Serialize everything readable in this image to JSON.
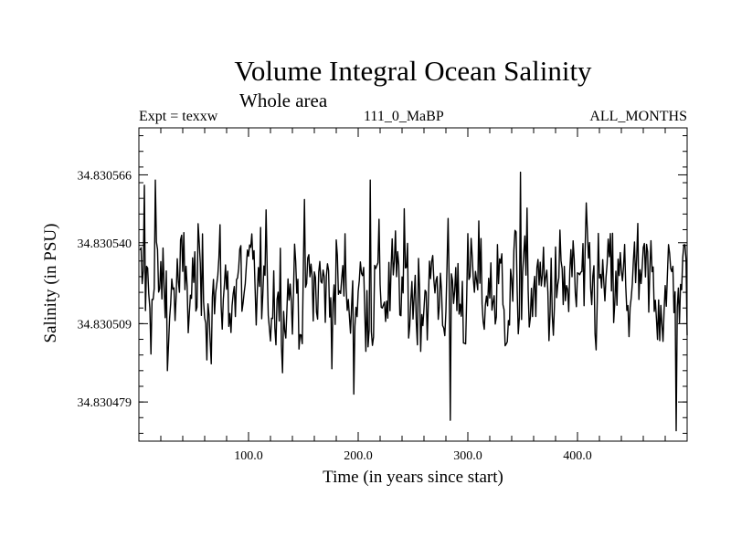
{
  "chart_data": {
    "type": "line",
    "title": "Volume Integral Ocean Salinity",
    "subtitle": "Whole area",
    "expt_label": "Expt = texxw",
    "run_label": "111_0_MaBP",
    "months_label": "ALL_MONTHS",
    "xlabel": "Time (in years since start)",
    "ylabel": "Salinity (in PSU)",
    "xlim": [
      0,
      500
    ],
    "ylim": [
      34.830464,
      34.830584
    ],
    "x_ticks": [
      {
        "value": 100,
        "label": "100.0"
      },
      {
        "value": 200,
        "label": "200.0"
      },
      {
        "value": 300,
        "label": "300.0"
      },
      {
        "value": 400,
        "label": "400.0"
      }
    ],
    "y_ticks": [
      {
        "value": 34.830479,
        "label": "34.830479"
      },
      {
        "value": 34.830509,
        "label": "34.830509"
      },
      {
        "value": 34.83054,
        "label": "34.830540"
      },
      {
        "value": 34.830566,
        "label": "34.830566"
      }
    ],
    "series": [
      {
        "name": "salinity",
        "start_year": 1,
        "step_years": 1,
        "count": 500,
        "mean": 34.830522,
        "std": 1.2e-05,
        "min": 34.830468,
        "max": 34.830567,
        "notable_points": [
          {
            "x": 5,
            "y": 34.830562
          },
          {
            "x": 15,
            "y": 34.830564
          },
          {
            "x": 26,
            "y": 34.830491
          },
          {
            "x": 211,
            "y": 34.830564
          },
          {
            "x": 196,
            "y": 34.830482
          },
          {
            "x": 284,
            "y": 34.830472
          },
          {
            "x": 348,
            "y": 34.830567
          },
          {
            "x": 490,
            "y": 34.830468
          }
        ]
      }
    ]
  }
}
